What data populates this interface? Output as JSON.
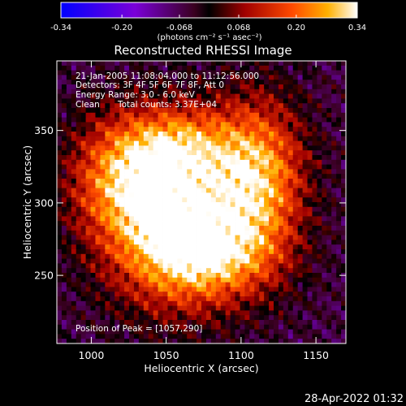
{
  "chart_data": {
    "type": "heatmap",
    "title": "Reconstructed RHESSI Image",
    "colorbar": {
      "ticks": [
        "-0.34",
        "-0.20",
        "-0.068",
        "0.068",
        "0.20",
        "0.34"
      ],
      "tick_values": [
        -0.34,
        -0.2,
        -0.068,
        0.068,
        0.2,
        0.34
      ],
      "range": [
        -0.34,
        0.34
      ],
      "unit_label": "(photons cm⁻² s⁻¹ asec⁻²)"
    },
    "annotations": {
      "time": "21-Jan-2005 11:08:04.000 to 11:12:56.000",
      "detectors": "Detectors: 3F 4F 5F 6F 7F 8F, Att 0",
      "energy": "Energy Range: 3.0 - 6.0 keV",
      "clean": "Clean",
      "counts": "Total counts: 3.37E+04",
      "peak": "Position of Peak = [1057,290]"
    },
    "xlabel": "Heliocentric X (arcsec)",
    "ylabel": "Heliocentric Y (arcsec)",
    "x_ticks": [
      1000,
      1050,
      1100,
      1150
    ],
    "y_ticks": [
      250,
      300,
      350
    ],
    "xlim": [
      977,
      1170
    ],
    "ylim": [
      203,
      398
    ],
    "grid": false,
    "peak": {
      "x": 1057,
      "y": 290,
      "value": 0.34
    },
    "sources": [
      {
        "x": 1057,
        "y": 290,
        "sx": 34,
        "sy": 42,
        "amp": 0.3
      },
      {
        "x": 1112,
        "y": 318,
        "sx": 22,
        "sy": 38,
        "amp": 0.24
      },
      {
        "x": 1020,
        "y": 318,
        "sx": 25,
        "sy": 30,
        "amp": 0.17
      },
      {
        "x": 1080,
        "y": 262,
        "sx": 32,
        "sy": 20,
        "amp": 0.14
      },
      {
        "x": 1060,
        "y": 340,
        "sx": 25,
        "sy": 18,
        "amp": 0.12
      }
    ],
    "background_level": -0.05
  },
  "footer": {
    "timestamp": "28-Apr-2022 01:32"
  },
  "colors": {
    "background": "#000000",
    "text": "#ffffff"
  }
}
